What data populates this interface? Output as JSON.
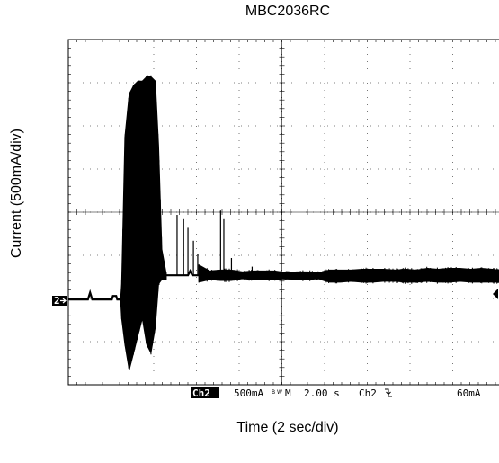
{
  "chart_data": {
    "type": "line",
    "title": "MBC2036RC",
    "xlabel": "Time (2 sec/div)",
    "ylabel": "Current (500mA/div)",
    "x_unit": "s",
    "y_unit": "mA (relative to Ch2 ground marker)",
    "xlim": [
      0,
      19.8
    ],
    "ylim": [
      -1000,
      3000
    ],
    "grid": true,
    "series": [
      {
        "segments": [
          {
            "type": "line",
            "points": [
              [
                0,
                20
              ],
              [
                0.9,
                20
              ],
              [
                1.0,
                100
              ],
              [
                1.1,
                20
              ],
              [
                2.0,
                20
              ],
              [
                2.05,
                60
              ],
              [
                2.2,
                60
              ],
              [
                2.25,
                20
              ],
              [
                2.4,
                20
              ]
            ]
          },
          {
            "type": "envelope",
            "x": [
              2.4,
              2.45,
              2.6,
              2.8,
              3.0,
              3.2,
              3.4,
              3.6,
              3.8,
              4.0,
              4.15,
              4.3,
              4.5
            ],
            "max": [
              20,
              200,
              1900,
              2400,
              2500,
              2550,
              2550,
              2600,
              2600,
              2550,
              1800,
              600,
              320
            ],
            "min": [
              20,
              -200,
              -500,
              -800,
              -600,
              -400,
              -200,
              -500,
              -600,
              -300,
              200,
              250,
              250
            ]
          },
          {
            "type": "line",
            "points": [
              [
                4.5,
                300
              ],
              [
                5.5,
                300
              ],
              [
                5.6,
                350
              ],
              [
                5.7,
                300
              ],
              [
                6.0,
                300
              ]
            ]
          },
          {
            "type": "envelope",
            "x": [
              6.0,
              6.5,
              7.0,
              7.5,
              8.0,
              8.5,
              9.0,
              9.5,
              10.0,
              10.5,
              11.0,
              11.5,
              12.0,
              12.5,
              13.0,
              13.5,
              14.0,
              14.5,
              15.0,
              15.5,
              16.0,
              16.5,
              17.0,
              17.5,
              18.0,
              18.5,
              19.0,
              19.5,
              19.8
            ],
            "max": [
              420,
              350,
              360,
              360,
              340,
              350,
              350,
              350,
              330,
              340,
              340,
              330,
              360,
              360,
              360,
              370,
              370,
              370,
              360,
              370,
              360,
              380,
              370,
              380,
              380,
              370,
              380,
              370,
              360
            ],
            "min": [
              220,
              250,
              240,
              240,
              260,
              250,
              250,
              250,
              260,
              250,
              250,
              260,
              220,
              220,
              230,
              220,
              220,
              230,
              230,
              220,
              220,
              230,
              220,
              220,
              230,
              220,
              220,
              220,
              220
            ]
          },
          {
            "type": "spikes",
            "points": [
              [
                5.0,
                1000
              ],
              [
                5.3,
                950
              ],
              [
                5.5,
                850
              ],
              [
                5.75,
                700
              ],
              [
                5.95,
                550
              ],
              [
                7.0,
                1050
              ],
              [
                7.15,
                950
              ],
              [
                7.5,
                500
              ],
              [
                8.45,
                400
              ]
            ]
          }
        ]
      }
    ],
    "markers": {
      "channel_marker_label": "2",
      "trigger_marker_label": "T"
    },
    "status": {
      "channel": "Ch2",
      "scale": "500mA",
      "bandwidth_icon": "B W",
      "timebase_label": "M",
      "timebase": "2.00 s",
      "trigger_channel": "Ch2",
      "trigger_slope": "falling-edge-icon",
      "trigger_level": "60mA"
    }
  }
}
